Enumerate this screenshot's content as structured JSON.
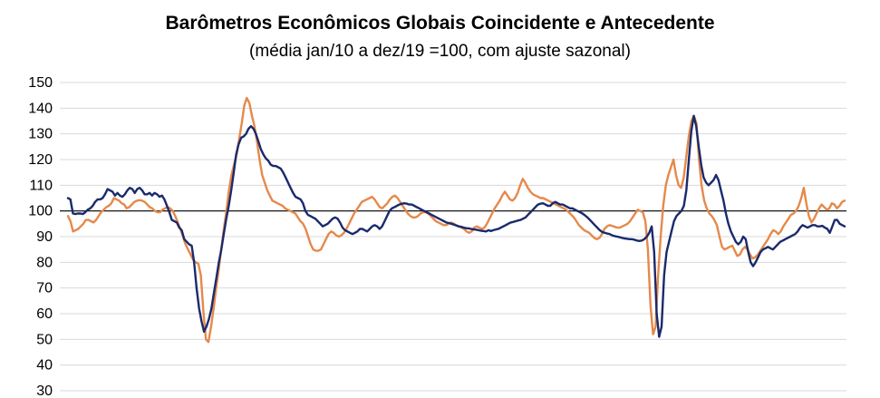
{
  "chart_data": {
    "type": "line",
    "title": "Barômetros Econômicos Globais Coincidente e Antecedente",
    "subtitle": "(média jan/10 a dez/19 =100, com ajuste sazonal)",
    "xlabel": "",
    "ylabel": "",
    "ylim": [
      30,
      150
    ],
    "yticks": [
      "150",
      "140",
      "130",
      "120",
      "110",
      "100",
      "90",
      "80",
      "70",
      "60",
      "50",
      "40",
      "30"
    ],
    "grid": "horizontal",
    "reference_line": 100,
    "legend": "none",
    "series": [
      {
        "color": "#1a2a6c",
        "values": [
          105,
          104.5,
          99,
          98.8,
          99,
          99,
          98.8,
          99.5,
          100.5,
          101,
          102,
          103.5,
          104.5,
          104.5,
          105,
          106.5,
          108.5,
          108,
          107.5,
          106,
          107,
          106,
          105.5,
          106.5,
          108,
          109,
          108.5,
          107,
          108.5,
          109,
          108,
          106.5,
          106.5,
          107,
          106,
          107,
          106.5,
          105.5,
          106,
          104.5,
          102,
          99.5,
          96.5,
          96,
          95.5,
          93.5,
          92.5,
          89,
          88,
          87,
          86.5,
          80,
          70,
          62,
          57,
          53,
          55,
          58,
          62,
          68,
          74,
          80,
          85,
          91,
          97,
          102,
          108,
          115,
          122,
          126,
          128.5,
          129,
          130,
          132,
          133,
          132,
          130,
          127,
          124,
          122,
          120.5,
          119.5,
          118,
          117.5,
          117.5,
          117,
          116.5,
          115,
          113,
          111,
          109,
          107,
          105.5,
          105,
          104.5,
          103,
          100,
          98.5,
          98,
          97.5,
          97,
          96,
          95,
          94,
          94.5,
          95,
          96,
          97,
          97.5,
          97,
          95.5,
          93.5,
          92.5,
          92,
          91.5,
          91,
          91.5,
          92,
          93,
          93,
          92.5,
          92,
          93,
          94,
          94.5,
          94,
          93,
          94,
          96,
          98,
          100,
          101,
          101.5,
          102,
          102.5,
          102.8,
          103,
          102.8,
          102.5,
          102.5,
          102,
          101.5,
          101,
          100.5,
          100,
          99.5,
          99,
          98.5,
          98,
          97.5,
          97,
          96.5,
          96,
          95.5,
          95.3,
          95,
          94.7,
          94.3,
          94,
          93.8,
          93.5,
          93.3,
          93.2,
          93,
          92.8,
          92.7,
          92.5,
          92.3,
          92.2,
          92,
          92.5,
          92.2,
          92.5,
          92.8,
          93,
          93.5,
          94,
          94.5,
          95,
          95.5,
          95.7,
          96,
          96.3,
          96.5,
          97,
          97.5,
          98.5,
          99.5,
          100.5,
          101.5,
          102.5,
          102.8,
          103,
          102.5,
          102,
          102,
          103,
          103.5,
          103,
          102.5,
          102.5,
          102,
          101.5,
          101,
          101,
          100.5,
          100,
          99.5,
          99,
          98.3,
          97.5,
          96.5,
          95.5,
          94.5,
          93.5,
          92.5,
          91.8,
          91.5,
          91.2,
          91,
          90.5,
          90.2,
          90,
          89.8,
          89.5,
          89.3,
          89.2,
          89,
          89,
          88.8,
          88.5,
          88.3,
          88.5,
          89,
          90,
          91.5,
          94,
          84,
          60,
          51,
          55,
          75,
          84,
          88,
          92,
          96,
          98,
          99,
          100,
          102,
          108,
          120,
          131,
          137,
          133,
          125,
          118,
          113,
          111,
          110,
          111,
          112,
          114,
          112,
          108,
          104,
          99,
          95,
          92,
          90,
          88,
          87,
          88,
          90,
          89,
          84,
          80,
          78.5,
          80,
          82,
          84,
          85,
          85.5,
          86,
          85.5,
          85,
          86,
          87,
          88,
          88.5,
          89,
          89.5,
          90,
          90.5,
          91,
          92,
          93.5,
          94.5,
          94,
          93.5,
          94,
          94.5,
          94.5,
          94,
          94,
          94.2,
          93.5,
          93,
          91.5,
          94,
          96.5,
          96.5,
          95,
          94.5,
          94
        ]
      },
      {
        "color": "#e5894b",
        "values": [
          98,
          96,
          92,
          92.5,
          93,
          94,
          95,
          96.5,
          96.5,
          96,
          95.5,
          96.5,
          98,
          99.5,
          100.5,
          101.5,
          102,
          103,
          105,
          104.5,
          104,
          103,
          102.5,
          101,
          101.5,
          102.5,
          103.5,
          104,
          104.2,
          104,
          103.5,
          102.5,
          101.5,
          101,
          100,
          99.5,
          99.5,
          100.5,
          101,
          101.5,
          101,
          100,
          98,
          95.5,
          93,
          90,
          87,
          85,
          83,
          81,
          80,
          79.5,
          75,
          61,
          50,
          49,
          55,
          62,
          70,
          77,
          85,
          93,
          100,
          108,
          114,
          118,
          122,
          128,
          134,
          141,
          144,
          142,
          137,
          133,
          127,
          120,
          114,
          111,
          108,
          106,
          104,
          103.5,
          103,
          102.5,
          102,
          101,
          100.5,
          100,
          99.5,
          99,
          97.5,
          96,
          95,
          93,
          90,
          87,
          85,
          84.5,
          84.5,
          85,
          87,
          89,
          91,
          92,
          91.5,
          90.5,
          90,
          90.5,
          91.5,
          93,
          95,
          97,
          99,
          100.5,
          102,
          103.5,
          104,
          104.5,
          105,
          105.5,
          104.5,
          103,
          101.5,
          101,
          102,
          103,
          104.5,
          105.5,
          106,
          105,
          103.5,
          102,
          100.5,
          99,
          98,
          97.5,
          97.5,
          98,
          99,
          99.5,
          99.5,
          99,
          98,
          97,
          96,
          95.5,
          95,
          94.5,
          94.5,
          95,
          95.5,
          95,
          94.5,
          94,
          93.5,
          93,
          92,
          91.5,
          92,
          93.5,
          94,
          93.5,
          93,
          93.5,
          95,
          97,
          99,
          101,
          102.5,
          104,
          106,
          107.5,
          106,
          104.5,
          104,
          105,
          107,
          110,
          112.5,
          111,
          109,
          107.5,
          106.5,
          106,
          105.5,
          105,
          105,
          104.5,
          104,
          103.5,
          103,
          102.5,
          102,
          101.5,
          101,
          100.5,
          99.5,
          98.5,
          97.5,
          96,
          94.5,
          93.5,
          92.5,
          92,
          91.5,
          90.5,
          89.5,
          89,
          89.5,
          91,
          93,
          94,
          94.5,
          94.2,
          93.8,
          93.5,
          93.5,
          94,
          94.5,
          95,
          96,
          97.5,
          99,
          100.5,
          100,
          99.5,
          96,
          85,
          63,
          52,
          55,
          75,
          90,
          102,
          110,
          114,
          117,
          120,
          114,
          110,
          109,
          113,
          121,
          129,
          135,
          137,
          134,
          120,
          110,
          104,
          101,
          99,
          98,
          96.5,
          94.5,
          90,
          86,
          85,
          85.5,
          86,
          86.5,
          84.5,
          82.5,
          83,
          85,
          86,
          85,
          83,
          81.5,
          82,
          83,
          84.5,
          86,
          87.5,
          89,
          91,
          92.5,
          92,
          91,
          92,
          94,
          95.5,
          97,
          98.5,
          99,
          100,
          102,
          105,
          109,
          103,
          98,
          95.5,
          97,
          99,
          101,
          102.5,
          101.5,
          100.5,
          101,
          103,
          102.5,
          101,
          102,
          103.5,
          104
        ]
      }
    ]
  }
}
